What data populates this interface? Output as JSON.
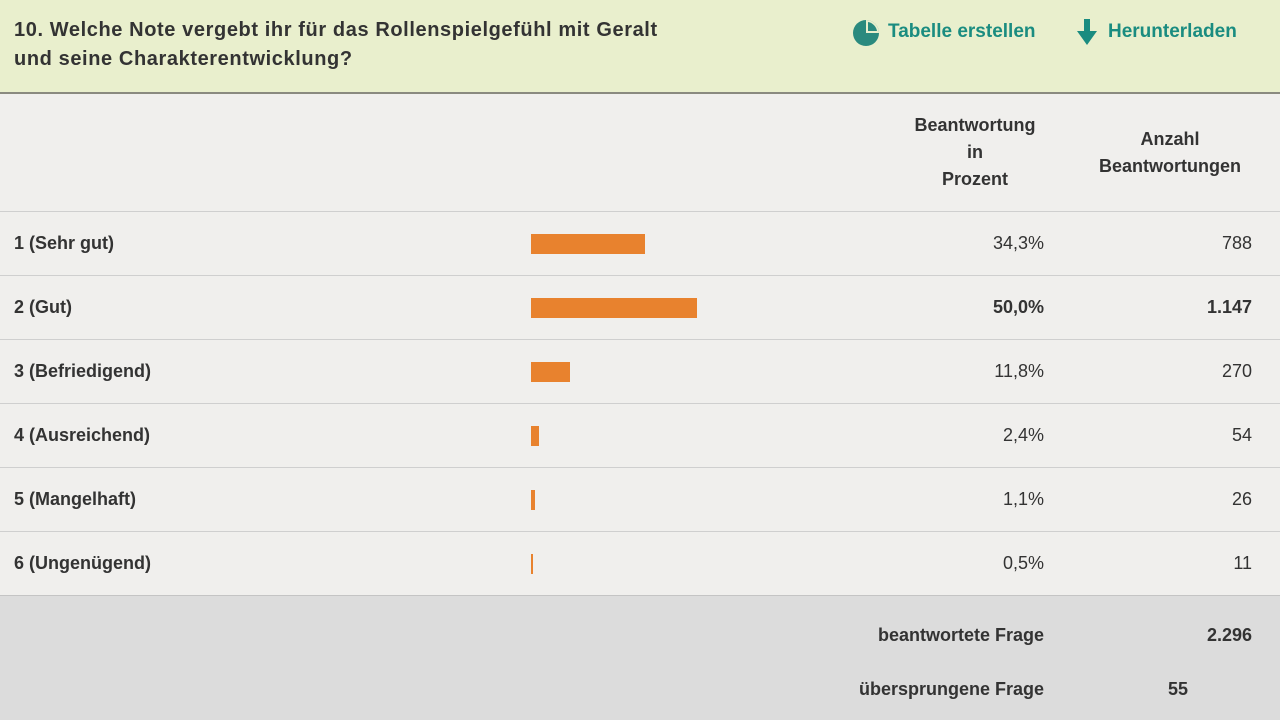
{
  "header": {
    "title_lines": [
      "10. Welche Note vergebt ihr für das Rollenspielgefühl mit Geralt",
      "und seine Charakterentwicklung?"
    ],
    "actions": [
      "Tabelle erstellen",
      "Herunterladen"
    ]
  },
  "table": {
    "columns": {
      "percent": [
        "Beantwortung",
        "in",
        "Prozent"
      ],
      "count": [
        "Anzahl",
        "Beantwortungen"
      ]
    },
    "bar_color": "#e8822e",
    "rows": [
      {
        "label": "1 (Sehr gut)",
        "percent": 34.3,
        "percent_label": "34,3%",
        "count": "788"
      },
      {
        "label": "2 (Gut)",
        "percent": 50.0,
        "percent_label": "50,0%",
        "count": "1.147"
      },
      {
        "label": "3 (Befriedigend)",
        "percent": 11.8,
        "percent_label": "11,8%",
        "count": "270"
      },
      {
        "label": "4 (Ausreichend)",
        "percent": 2.4,
        "percent_label": "2,4%",
        "count": "54"
      },
      {
        "label": "5 (Mangelhaft)",
        "percent": 1.1,
        "percent_label": "1,1%",
        "count": "26"
      },
      {
        "label": "6 (Ungenügend)",
        "percent": 0.5,
        "percent_label": "0,5%",
        "count": "11"
      }
    ]
  },
  "footer": {
    "answered_label": "beantwortete Frage",
    "answered": "2.296",
    "skipped_label": "übersprungene Frage",
    "skipped": "55"
  }
}
